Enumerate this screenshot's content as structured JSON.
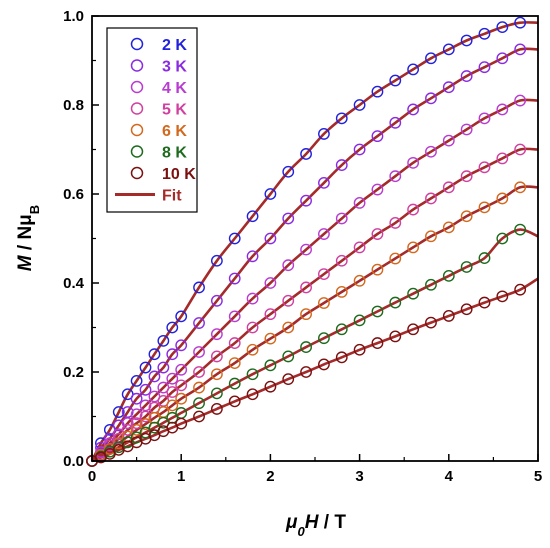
{
  "chart_data": {
    "type": "scatter",
    "title": "",
    "xlabel": {
      "main": "μ",
      "sub": "0",
      "var": "H",
      "unit": " / T"
    },
    "ylabel": {
      "var": "M",
      "sep": " / N",
      "mu": "μ",
      "sub": "B"
    },
    "xlim": [
      0,
      5
    ],
    "ylim": [
      0,
      1
    ],
    "xticks": [
      "0",
      "1",
      "2",
      "3",
      "4",
      "5"
    ],
    "yticks": [
      "0.0",
      "0.2",
      "0.4",
      "0.6",
      "0.8",
      "1.0"
    ],
    "grid": false,
    "legend_position": "top-left",
    "fit_label": "Fit",
    "fit_color": "#a52a2a",
    "x": [
      0.0,
      0.1,
      0.2,
      0.3,
      0.4,
      0.5,
      0.6,
      0.7,
      0.8,
      0.9,
      1.0,
      1.2,
      1.4,
      1.6,
      1.8,
      2.0,
      2.2,
      2.4,
      2.6,
      2.8,
      3.0,
      3.2,
      3.4,
      3.6,
      3.8,
      4.0,
      4.2,
      4.4,
      4.6,
      4.8
    ],
    "series": [
      {
        "name": "2 K",
        "color": "#2222dd",
        "fit_end": 0.985,
        "values": [
          0.0,
          0.04,
          0.07,
          0.11,
          0.15,
          0.18,
          0.21,
          0.24,
          0.27,
          0.3,
          0.325,
          0.39,
          0.45,
          0.5,
          0.55,
          0.6,
          0.65,
          0.69,
          0.735,
          0.77,
          0.8,
          0.83,
          0.855,
          0.88,
          0.905,
          0.925,
          0.945,
          0.96,
          0.975,
          0.985
        ]
      },
      {
        "name": "3 K",
        "color": "#8a2be2",
        "fit_end": 0.925,
        "values": [
          0.0,
          0.03,
          0.05,
          0.08,
          0.11,
          0.14,
          0.16,
          0.19,
          0.21,
          0.24,
          0.26,
          0.31,
          0.36,
          0.41,
          0.46,
          0.5,
          0.545,
          0.585,
          0.625,
          0.665,
          0.7,
          0.73,
          0.76,
          0.79,
          0.815,
          0.84,
          0.865,
          0.885,
          0.905,
          0.925
        ]
      },
      {
        "name": "4 K",
        "color": "#b83cd0",
        "fit_end": 0.81,
        "values": [
          0.0,
          0.02,
          0.04,
          0.06,
          0.085,
          0.105,
          0.125,
          0.145,
          0.165,
          0.185,
          0.205,
          0.245,
          0.285,
          0.325,
          0.365,
          0.4,
          0.44,
          0.475,
          0.51,
          0.545,
          0.58,
          0.61,
          0.64,
          0.67,
          0.695,
          0.72,
          0.745,
          0.77,
          0.79,
          0.81
        ]
      },
      {
        "name": "5 K",
        "color": "#d040a0",
        "fit_end": 0.7,
        "values": [
          0.0,
          0.015,
          0.035,
          0.05,
          0.07,
          0.085,
          0.1,
          0.12,
          0.135,
          0.155,
          0.17,
          0.2,
          0.235,
          0.265,
          0.3,
          0.33,
          0.36,
          0.39,
          0.42,
          0.45,
          0.48,
          0.51,
          0.535,
          0.565,
          0.59,
          0.615,
          0.64,
          0.66,
          0.68,
          0.7
        ]
      },
      {
        "name": "6 K",
        "color": "#d2691e",
        "fit_end": 0.615,
        "values": [
          0.0,
          0.013,
          0.027,
          0.04,
          0.055,
          0.07,
          0.083,
          0.097,
          0.11,
          0.125,
          0.14,
          0.165,
          0.195,
          0.22,
          0.25,
          0.275,
          0.3,
          0.33,
          0.355,
          0.38,
          0.405,
          0.43,
          0.455,
          0.48,
          0.505,
          0.525,
          0.55,
          0.57,
          0.59,
          0.615
        ]
      },
      {
        "name": "8 K",
        "color": "#1e6b1e",
        "fit_end": 0.505,
        "values": [
          0.0,
          0.01,
          0.021,
          0.031,
          0.042,
          0.053,
          0.064,
          0.075,
          0.086,
          0.097,
          0.108,
          0.13,
          0.152,
          0.174,
          0.195,
          0.215,
          0.235,
          0.256,
          0.276,
          0.296,
          0.316,
          0.336,
          0.356,
          0.376,
          0.396,
          0.416,
          0.436,
          0.456,
          0.5,
          0.52
        ]
      },
      {
        "name": "10 K",
        "color": "#7a1010",
        "fit_end": 0.41,
        "values": [
          0.0,
          0.008,
          0.016,
          0.025,
          0.033,
          0.042,
          0.05,
          0.058,
          0.067,
          0.075,
          0.084,
          0.1,
          0.117,
          0.134,
          0.15,
          0.167,
          0.184,
          0.2,
          0.217,
          0.233,
          0.25,
          0.265,
          0.28,
          0.296,
          0.311,
          0.326,
          0.341,
          0.356,
          0.37,
          0.385
        ]
      }
    ]
  }
}
